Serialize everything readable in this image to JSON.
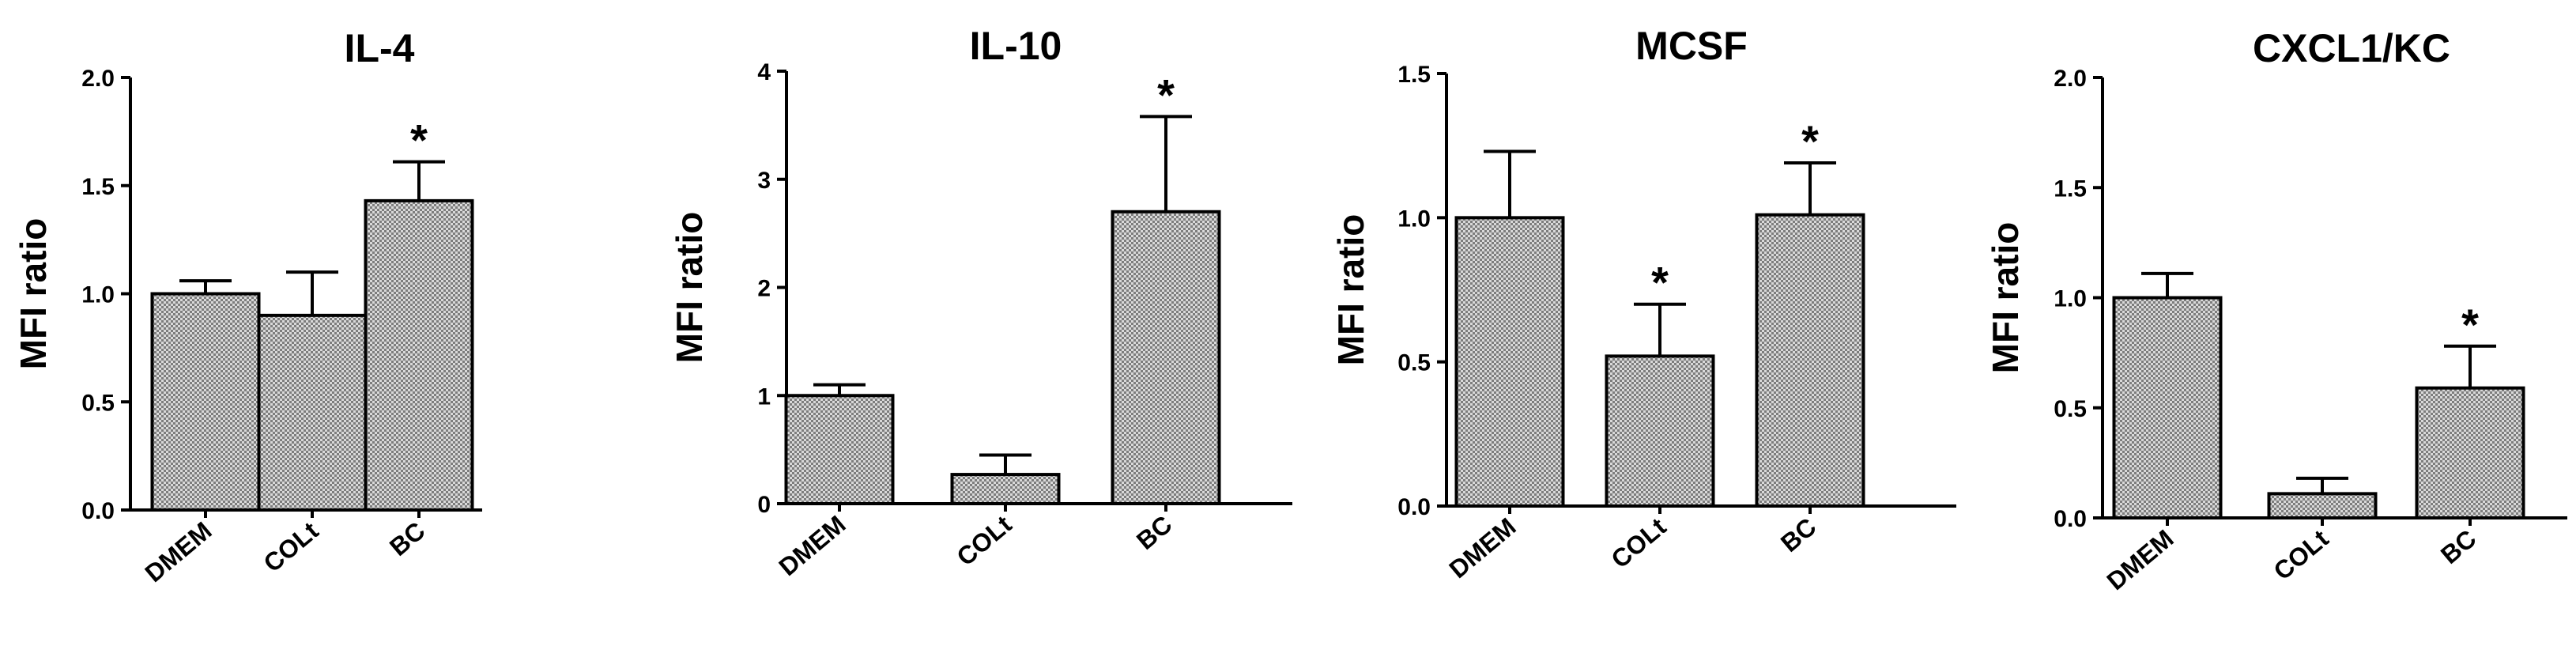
{
  "chart_data": [
    {
      "type": "bar",
      "title": "IL-4",
      "ylabel": "MFI ratio",
      "xlabel": "",
      "categories": [
        "DMEM",
        "COLt",
        "BC"
      ],
      "values": [
        1.0,
        0.9,
        1.43
      ],
      "errors": [
        0.06,
        0.2,
        0.18
      ],
      "significance": [
        "",
        "",
        "*"
      ],
      "ylim": [
        0,
        2.0
      ],
      "yticks": [
        "0.0",
        "0.5",
        "1.0",
        "1.5",
        "2.0"
      ],
      "ytick_values": [
        0,
        0.5,
        1.0,
        1.5,
        2.0
      ]
    },
    {
      "type": "bar",
      "title": "IL-10",
      "ylabel": "MFI ratio",
      "xlabel": "",
      "categories": [
        "DMEM",
        "COLt",
        "BC"
      ],
      "values": [
        1.0,
        0.27,
        2.7
      ],
      "errors": [
        0.1,
        0.18,
        0.88
      ],
      "significance": [
        "",
        "",
        "*"
      ],
      "ylim": [
        0,
        4
      ],
      "yticks": [
        "0",
        "1",
        "2",
        "3",
        "4"
      ],
      "ytick_values": [
        0,
        1,
        2,
        3,
        4
      ]
    },
    {
      "type": "bar",
      "title": "MCSF",
      "ylabel": "MFI ratio",
      "xlabel": "",
      "categories": [
        "DMEM",
        "COLt",
        "BC"
      ],
      "values": [
        1.0,
        0.52,
        1.01
      ],
      "errors": [
        0.23,
        0.18,
        0.18
      ],
      "significance": [
        "",
        "*",
        "*"
      ],
      "ylim": [
        0,
        1.5
      ],
      "yticks": [
        "0.0",
        "0.5",
        "1.0",
        "1.5"
      ],
      "ytick_values": [
        0,
        0.5,
        1.0,
        1.5
      ]
    },
    {
      "type": "bar",
      "title": "CXCL1/KC",
      "ylabel": "MFI ratio",
      "xlabel": "",
      "categories": [
        "DMEM",
        "COLt",
        "BC"
      ],
      "values": [
        1.0,
        0.11,
        0.59
      ],
      "errors": [
        0.11,
        0.07,
        0.19
      ],
      "significance": [
        "",
        "",
        "*"
      ],
      "ylim": [
        0,
        2.0
      ],
      "yticks": [
        "0.0",
        "0.5",
        "1.0",
        "1.5",
        "2.0"
      ],
      "ytick_values": [
        0,
        0.5,
        1.0,
        1.5,
        2.0
      ]
    }
  ],
  "colors": {
    "bar_fill": "#8a8a8a",
    "bar_pattern_dot": "#ffffff",
    "stroke": "#000000"
  }
}
